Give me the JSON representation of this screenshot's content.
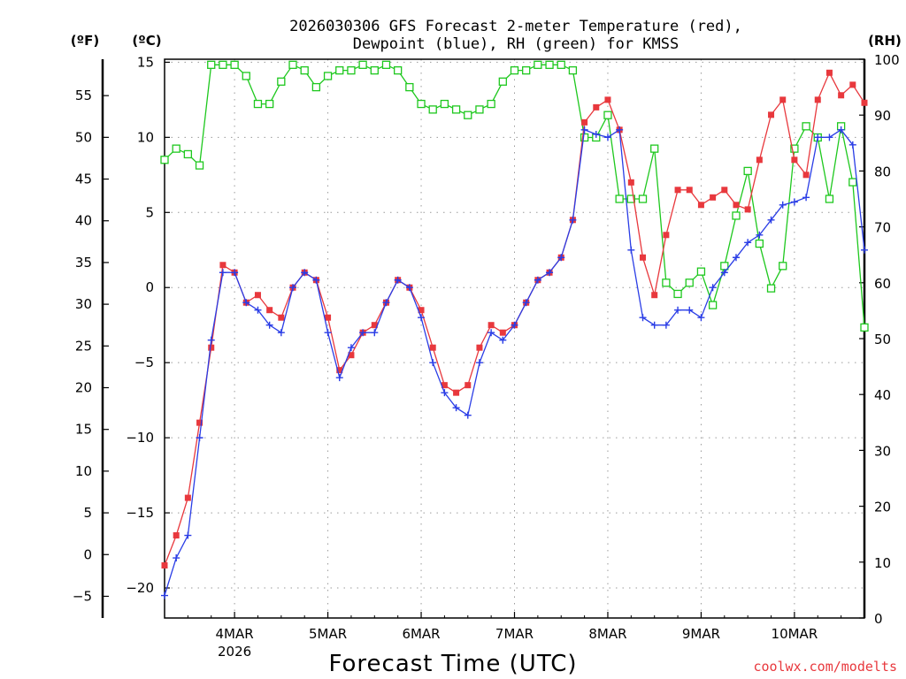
{
  "chart_data": {
    "type": "line",
    "title_line1": "2026030306 GFS Forecast 2-meter Temperature (red),",
    "title_line2": "Dewpoint (blue), RH (green) for KMSS",
    "xlabel": "Forecast Time (UTC)",
    "credit": "coolwx.com/modelts",
    "units": {
      "fahrenheit": "(ºF)",
      "celsius": "(ºC)",
      "rh": "(RH)"
    },
    "x_range_days": [
      3.25,
      10.75
    ],
    "x_ticks": [
      {
        "day": 4,
        "label": "4MAR",
        "sublabel": "2026"
      },
      {
        "day": 5,
        "label": "5MAR",
        "sublabel": ""
      },
      {
        "day": 6,
        "label": "6MAR",
        "sublabel": ""
      },
      {
        "day": 7,
        "label": "7MAR",
        "sublabel": ""
      },
      {
        "day": 8,
        "label": "8MAR",
        "sublabel": ""
      },
      {
        "day": 9,
        "label": "9MAR",
        "sublabel": ""
      },
      {
        "day": 10,
        "label": "10MAR",
        "sublabel": ""
      }
    ],
    "celsius_range": [
      -22,
      15.2
    ],
    "celsius_ticks": [
      "15",
      "10",
      "5",
      "0",
      "−5",
      "−10",
      "−15",
      "−20"
    ],
    "fahrenheit_ticks": [
      "55",
      "50",
      "45",
      "40",
      "35",
      "30",
      "25",
      "20",
      "15",
      "10",
      "5",
      "0",
      "−5"
    ],
    "rh_range": [
      0,
      100
    ],
    "rh_ticks": [
      "100",
      "90",
      "80",
      "70",
      "60",
      "50",
      "40",
      "30",
      "20",
      "10",
      "0"
    ],
    "colors": {
      "temperature": "#e8383d",
      "dewpoint": "#2a3de6",
      "rh": "#1ec81e",
      "grid": "#9a9a9a",
      "credit": "#e8383d"
    },
    "series": [
      {
        "name": "Temperature",
        "units": "C",
        "x": [
          3.25,
          3.375,
          3.5,
          3.625,
          3.75,
          3.875,
          4.0,
          4.125,
          4.25,
          4.375,
          4.5,
          4.625,
          4.75,
          4.875,
          5.0,
          5.125,
          5.25,
          5.375,
          5.5,
          5.625,
          5.75,
          5.875,
          6.0,
          6.125,
          6.25,
          6.375,
          6.5,
          6.625,
          6.75,
          6.875,
          7.0,
          7.125,
          7.25,
          7.375,
          7.5,
          7.625,
          7.75,
          7.875,
          8.0,
          8.125,
          8.25,
          8.375,
          8.5,
          8.625,
          8.75,
          8.875,
          9.0,
          9.125,
          9.25,
          9.375,
          9.5,
          9.625,
          9.75,
          9.875,
          10.0,
          10.125,
          10.25,
          10.375,
          10.5,
          10.625,
          10.75
        ],
        "values": [
          -18.5,
          -16.5,
          -14,
          -9,
          -4,
          1.5,
          1,
          -1,
          -0.5,
          -1.5,
          -2,
          0,
          1,
          0.5,
          -2,
          -5.5,
          -4.5,
          -3,
          -2.5,
          -1,
          0.5,
          0,
          -1.5,
          -4,
          -6.5,
          -7,
          -6.5,
          -4,
          -2.5,
          -3,
          -2.5,
          -1,
          0.5,
          1,
          2,
          4.5,
          11,
          12,
          12.5,
          10.5,
          7,
          2,
          -0.5,
          3.5,
          6.5,
          6.5,
          5.5,
          6,
          6.5,
          5.5,
          5.2,
          8.5,
          11.5,
          12.5,
          8.5,
          7.5,
          12.5,
          14.3,
          12.8,
          13.5,
          12.3
        ]
      },
      {
        "name": "Dewpoint",
        "units": "C",
        "x": [
          3.25,
          3.375,
          3.5,
          3.625,
          3.75,
          3.875,
          4.0,
          4.125,
          4.25,
          4.375,
          4.5,
          4.625,
          4.75,
          4.875,
          5.0,
          5.125,
          5.25,
          5.375,
          5.5,
          5.625,
          5.75,
          5.875,
          6.0,
          6.125,
          6.25,
          6.375,
          6.5,
          6.625,
          6.75,
          6.875,
          7.0,
          7.125,
          7.25,
          7.375,
          7.5,
          7.625,
          7.75,
          7.875,
          8.0,
          8.125,
          8.25,
          8.375,
          8.5,
          8.625,
          8.75,
          8.875,
          9.0,
          9.125,
          9.25,
          9.375,
          9.5,
          9.625,
          9.75,
          9.875,
          10.0,
          10.125,
          10.25,
          10.375,
          10.5,
          10.625,
          10.75
        ],
        "values": [
          -20.5,
          -18,
          -16.5,
          -10,
          -3.5,
          1,
          1,
          -1,
          -1.5,
          -2.5,
          -3,
          0,
          1,
          0.5,
          -3,
          -6,
          -4,
          -3,
          -3,
          -1,
          0.5,
          0,
          -2,
          -5,
          -7,
          -8,
          -8.5,
          -5,
          -3,
          -3.5,
          -2.5,
          -1,
          0.5,
          1,
          2,
          4.5,
          10.5,
          10.2,
          10,
          10.5,
          2.5,
          -2,
          -2.5,
          -2.5,
          -1.5,
          -1.5,
          -2,
          0,
          1,
          2,
          3,
          3.5,
          4.5,
          5.5,
          5.7,
          6,
          10,
          10,
          10.5,
          9.5,
          2.5
        ]
      },
      {
        "name": "RH",
        "units": "%",
        "x": [
          3.25,
          3.375,
          3.5,
          3.625,
          3.75,
          3.875,
          4.0,
          4.125,
          4.25,
          4.375,
          4.5,
          4.625,
          4.75,
          4.875,
          5.0,
          5.125,
          5.25,
          5.375,
          5.5,
          5.625,
          5.75,
          5.875,
          6.0,
          6.125,
          6.25,
          6.375,
          6.5,
          6.625,
          6.75,
          6.875,
          7.0,
          7.125,
          7.25,
          7.375,
          7.5,
          7.625,
          7.75,
          7.875,
          8.0,
          8.125,
          8.25,
          8.375,
          8.5,
          8.625,
          8.75,
          8.875,
          9.0,
          9.125,
          9.25,
          9.375,
          9.5,
          9.625,
          9.75,
          9.875,
          10.0,
          10.125,
          10.25,
          10.375,
          10.5,
          10.625,
          10.75
        ],
        "values": [
          82,
          84,
          83,
          81,
          99,
          99,
          99,
          97,
          92,
          92,
          96,
          99,
          98,
          95,
          97,
          98,
          98,
          99,
          98,
          99,
          98,
          95,
          92,
          91,
          92,
          91,
          90,
          91,
          92,
          96,
          98,
          98,
          99,
          99,
          99,
          98,
          86,
          86,
          90,
          75,
          75,
          75,
          84,
          60,
          58,
          60,
          62,
          56,
          63,
          72,
          80,
          67,
          59,
          63,
          84,
          88,
          86,
          75,
          88,
          78,
          52
        ]
      }
    ]
  }
}
